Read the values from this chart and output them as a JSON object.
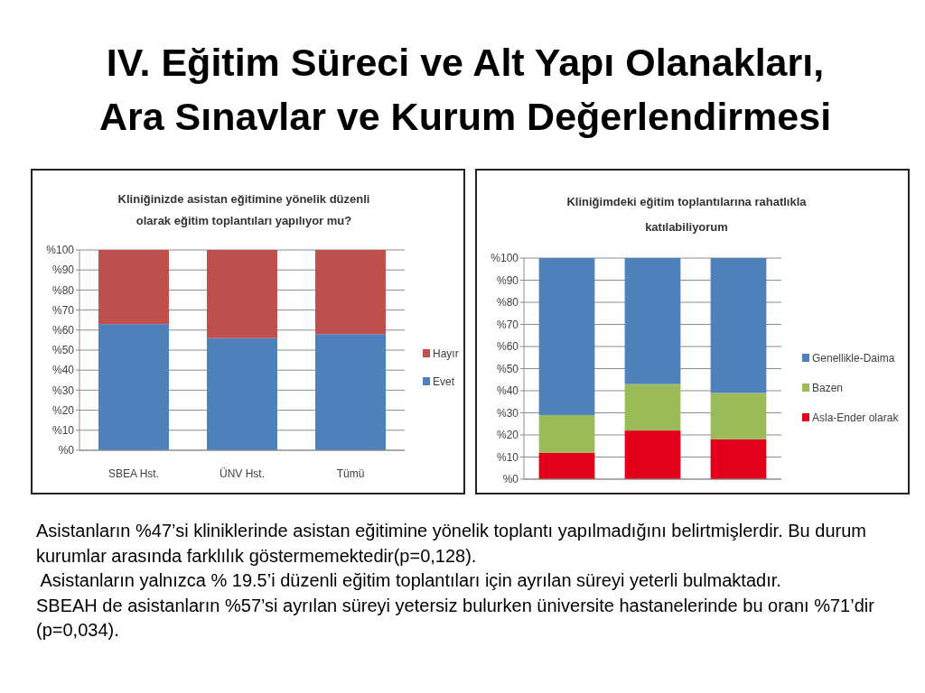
{
  "chart_data": [
    {
      "type": "other",
      "title": "IV. Eğitim Süreci ve Alt Yapı Olanakları,\nAra Sınavlar ve Kurum Değerlendirmesi"
    },
    {
      "type": "bar",
      "title": "Kliniğinizde asistan eğitimine yönelik düzenli\nolarak eğitim toplantıları yapılıyor mu?",
      "categories": [
        "SBEA Hst.",
        "ÜNV Hst.",
        "Tümü"
      ],
      "stacked": true,
      "series": [
        {
          "name": "Evet",
          "color": "#4f81bd",
          "values": [
            63,
            56,
            58
          ]
        },
        {
          "name": "Hayır",
          "color": "#c0504d",
          "values": [
            37,
            44,
            42
          ]
        }
      ],
      "ylim": [
        0,
        100
      ],
      "yticks": [
        {
          "value": 0,
          "label": "%0"
        },
        {
          "value": 10,
          "label": "%10"
        },
        {
          "value": 20,
          "label": "%20"
        },
        {
          "value": 30,
          "label": "%30"
        },
        {
          "value": 40,
          "label": "%40"
        },
        {
          "value": 50,
          "label": "%50"
        },
        {
          "value": 60,
          "label": "%60"
        },
        {
          "value": 70,
          "label": "%70"
        },
        {
          "value": 80,
          "label": "%80"
        },
        {
          "value": 90,
          "label": "%90"
        },
        {
          "value": 100,
          "label": "%100"
        }
      ],
      "grid": "y",
      "legend": "right"
    },
    {
      "type": "bar",
      "title": "Kliniğimdeki eğitim toplantılarına rahatlıkla\nkatılabiliyorum",
      "categories": [
        null,
        null,
        null
      ],
      "stacked": true,
      "series": [
        {
          "name": "Asla-Ender olarak",
          "color": "#e2001a",
          "values": [
            12,
            22,
            18
          ]
        },
        {
          "name": "Bazen",
          "color": "#9bbb59",
          "values": [
            17,
            21,
            21
          ]
        },
        {
          "name": "Genellikle-Daima",
          "color": "#4f81bd",
          "values": [
            71,
            57,
            61
          ]
        }
      ],
      "ylim": [
        0,
        100
      ],
      "yticks": [
        {
          "value": 0,
          "label": "%0"
        },
        {
          "value": 10,
          "label": "%10"
        },
        {
          "value": 20,
          "label": "%20"
        },
        {
          "value": 30,
          "label": "%30"
        },
        {
          "value": 40,
          "label": "%40"
        },
        {
          "value": 50,
          "label": "%50"
        },
        {
          "value": 60,
          "label": "%60"
        },
        {
          "value": 70,
          "label": "%70"
        },
        {
          "value": 80,
          "label": "%80"
        },
        {
          "value": 90,
          "label": "%90"
        },
        {
          "value": 100,
          "label": "%100"
        }
      ],
      "grid": "y",
      "legend": "right"
    },
    {
      "type": "other",
      "annotations": [
        "Asistanların %47’si kliniklerinde asistan eğitimine yönelik toplantı yapılmadığını belirtmişlerdir. Bu durum kurumlar arasında farklılık göstermemektedir(p=0,128).",
        " Asistanların yalnızca % 19.5’i düzenli eğitim toplantıları için ayrılan süreyi yeterli bulmaktadır.",
        "SBEAH de asistanların %57’si ayrılan süreyi yetersiz bulurken üniversite hastanelerinde bu oranı %71’dir (p=0,034)."
      ]
    }
  ]
}
